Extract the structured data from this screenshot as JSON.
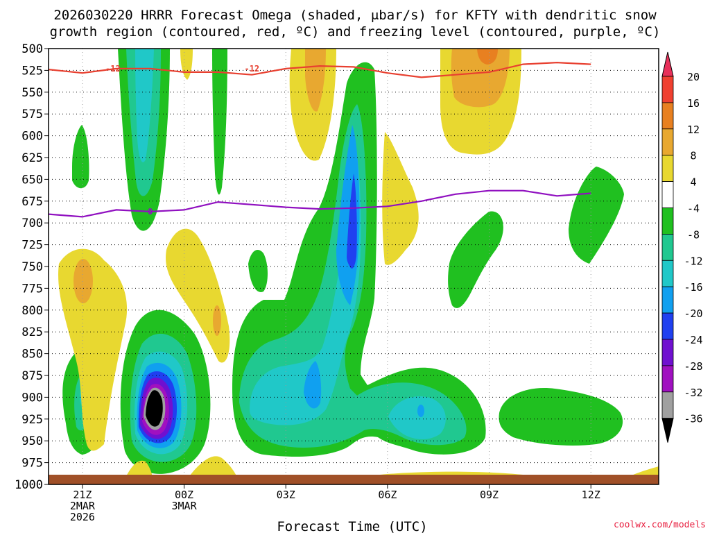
{
  "title_line1": "2026030220 HRRR Forecast Omega (shaded, μbar/s) for KFTY with dendritic snow",
  "title_line2": "growth region (contoured, red, ºC) and freezing level (contoured, purple, ºC)",
  "watermark": "coolwx.com/models",
  "chart_data": {
    "type": "heatmap",
    "xlabel": "Forecast Time (UTC)",
    "y_ticks": [
      "500",
      "525",
      "550",
      "575",
      "600",
      "625",
      "650",
      "675",
      "700",
      "725",
      "750",
      "775",
      "800",
      "825",
      "850",
      "875",
      "900",
      "925",
      "950",
      "975",
      "1000"
    ],
    "x_ticks": [
      {
        "lines": [
          "21Z",
          "2MAR",
          "2026"
        ]
      },
      {
        "lines": [
          "00Z",
          "3MAR"
        ]
      },
      {
        "lines": [
          "03Z"
        ]
      },
      {
        "lines": [
          "06Z"
        ]
      },
      {
        "lines": [
          "09Z"
        ]
      },
      {
        "lines": [
          "12Z"
        ]
      }
    ],
    "x_range_hours": [
      -1,
      17
    ],
    "y_range_hpa": [
      500,
      1000
    ],
    "colorbar": {
      "labels": [
        "20",
        "16",
        "12",
        "8",
        "4",
        "-4",
        "-8",
        "-12",
        "-16",
        "-20",
        "-24",
        "-28",
        "-32",
        "-36"
      ],
      "colors": [
        "#e8305a",
        "#f04030",
        "#e88020",
        "#e8a830",
        "#e8d830",
        "#ffffff",
        "#20c020",
        "#20c890",
        "#20c8c8",
        "#10a0f0",
        "#2040f0",
        "#7010d0",
        "#a010c0",
        "#a0a0a0",
        "#000000"
      ]
    },
    "contours": [
      {
        "label": "-12",
        "color": "#e84030",
        "points": [
          [
            -1,
            524
          ],
          [
            0,
            528
          ],
          [
            1,
            523
          ],
          [
            2,
            523
          ],
          [
            3,
            527
          ],
          [
            4,
            527
          ],
          [
            5,
            530
          ],
          [
            6,
            523
          ],
          [
            7,
            520
          ],
          [
            8,
            521
          ],
          [
            9,
            528
          ],
          [
            10,
            533
          ],
          [
            11,
            530
          ],
          [
            12,
            527
          ],
          [
            13,
            518
          ],
          [
            14,
            516
          ],
          [
            15,
            518
          ]
        ]
      },
      {
        "label": "0",
        "color": "#9010c0",
        "points": [
          [
            -1,
            690
          ],
          [
            0,
            693
          ],
          [
            1,
            685
          ],
          [
            2,
            687
          ],
          [
            3,
            685
          ],
          [
            4,
            676
          ],
          [
            5,
            679
          ],
          [
            6,
            682
          ],
          [
            7,
            684
          ],
          [
            8,
            683
          ],
          [
            9,
            681
          ],
          [
            10,
            675
          ],
          [
            11,
            667
          ],
          [
            12,
            663
          ],
          [
            13,
            663
          ],
          [
            14,
            669
          ],
          [
            15,
            666
          ]
        ]
      }
    ],
    "hatched_ground": {
      "color": "#a05028",
      "top_hpa": 990
    }
  }
}
